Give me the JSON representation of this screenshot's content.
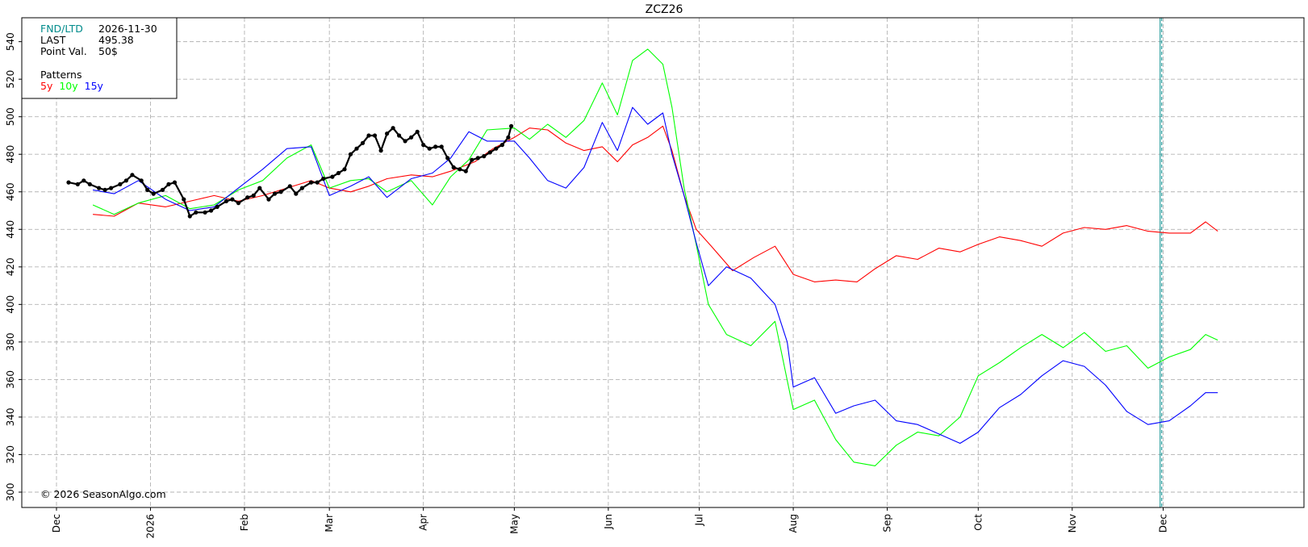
{
  "chart_data": {
    "type": "line",
    "title": "ZCZ26",
    "xlabel": "",
    "ylabel": "",
    "ylim": [
      300,
      545
    ],
    "y_ticks": [
      300,
      320,
      340,
      360,
      380,
      400,
      420,
      440,
      460,
      480,
      500,
      520,
      540
    ],
    "x_tick_labels": [
      "Dec",
      "2026",
      "Feb",
      "Mar",
      "Apr",
      "May",
      "Jun",
      "Jul",
      "Aug",
      "Sep",
      "Oct",
      "Nov",
      "Dec"
    ],
    "x_tick_dates": [
      "2025-12-01",
      "2026-01-01",
      "2026-02-01",
      "2026-03-01",
      "2026-04-01",
      "2026-05-01",
      "2026-06-01",
      "2026-07-01",
      "2026-08-01",
      "2026-09-01",
      "2026-10-01",
      "2026-11-01",
      "2026-12-01"
    ],
    "x_range": [
      "2025-12-01",
      "2027-01-01"
    ],
    "grid": true,
    "fnd_ltd_date": "2026-11-30",
    "series": [
      {
        "name": "5y",
        "color": "#ff0000",
        "points": [
          [
            "2025-12-13",
            448
          ],
          [
            "2025-12-20",
            447
          ],
          [
            "2025-12-28",
            454
          ],
          [
            "2026-01-06",
            452
          ],
          [
            "2026-01-14",
            455
          ],
          [
            "2026-01-22",
            458
          ],
          [
            "2026-01-30",
            455
          ],
          [
            "2026-02-07",
            458
          ],
          [
            "2026-02-15",
            462
          ],
          [
            "2026-02-23",
            466
          ],
          [
            "2026-03-01",
            462
          ],
          [
            "2026-03-08",
            460
          ],
          [
            "2026-03-14",
            463
          ],
          [
            "2026-03-20",
            467
          ],
          [
            "2026-03-28",
            469
          ],
          [
            "2026-04-04",
            468
          ],
          [
            "2026-04-10",
            471
          ],
          [
            "2026-04-18",
            476
          ],
          [
            "2026-04-24",
            483
          ],
          [
            "2026-05-01",
            489
          ],
          [
            "2026-05-06",
            494
          ],
          [
            "2026-05-12",
            493
          ],
          [
            "2026-05-18",
            486
          ],
          [
            "2026-05-24",
            482
          ],
          [
            "2026-05-30",
            484
          ],
          [
            "2026-06-04",
            476
          ],
          [
            "2026-06-09",
            485
          ],
          [
            "2026-06-14",
            489
          ],
          [
            "2026-06-19",
            495
          ],
          [
            "2026-06-22",
            482
          ],
          [
            "2026-06-26",
            458
          ],
          [
            "2026-06-30",
            440
          ],
          [
            "2026-07-05",
            431
          ],
          [
            "2026-07-12",
            418
          ],
          [
            "2026-07-19",
            425
          ],
          [
            "2026-07-26",
            431
          ],
          [
            "2026-08-01",
            416
          ],
          [
            "2026-08-08",
            412
          ],
          [
            "2026-08-15",
            413
          ],
          [
            "2026-08-22",
            412
          ],
          [
            "2026-08-28",
            419
          ],
          [
            "2026-09-04",
            426
          ],
          [
            "2026-09-11",
            424
          ],
          [
            "2026-09-18",
            430
          ],
          [
            "2026-09-25",
            428
          ],
          [
            "2026-10-01",
            432
          ],
          [
            "2026-10-08",
            436
          ],
          [
            "2026-10-15",
            434
          ],
          [
            "2026-10-22",
            431
          ],
          [
            "2026-10-29",
            438
          ],
          [
            "2026-11-05",
            441
          ],
          [
            "2026-11-12",
            440
          ],
          [
            "2026-11-19",
            442
          ],
          [
            "2026-11-26",
            439
          ],
          [
            "2026-12-03",
            438
          ],
          [
            "2026-12-10",
            438
          ],
          [
            "2026-12-15",
            444
          ],
          [
            "2026-12-19",
            439
          ]
        ]
      },
      {
        "name": "10y",
        "color": "#00ff00",
        "points": [
          [
            "2025-12-13",
            453
          ],
          [
            "2025-12-20",
            448
          ],
          [
            "2025-12-28",
            454
          ],
          [
            "2026-01-06",
            458
          ],
          [
            "2026-01-14",
            451
          ],
          [
            "2026-01-22",
            453
          ],
          [
            "2026-01-30",
            461
          ],
          [
            "2026-02-07",
            466
          ],
          [
            "2026-02-15",
            478
          ],
          [
            "2026-02-23",
            485
          ],
          [
            "2026-03-01",
            462
          ],
          [
            "2026-03-08",
            466
          ],
          [
            "2026-03-14",
            467
          ],
          [
            "2026-03-20",
            460
          ],
          [
            "2026-03-28",
            466
          ],
          [
            "2026-04-04",
            453
          ],
          [
            "2026-04-10",
            468
          ],
          [
            "2026-04-16",
            477
          ],
          [
            "2026-04-22",
            493
          ],
          [
            "2026-05-01",
            494
          ],
          [
            "2026-05-06",
            488
          ],
          [
            "2026-05-12",
            496
          ],
          [
            "2026-05-18",
            489
          ],
          [
            "2026-05-24",
            498
          ],
          [
            "2026-05-30",
            518
          ],
          [
            "2026-06-04",
            501
          ],
          [
            "2026-06-09",
            530
          ],
          [
            "2026-06-14",
            536
          ],
          [
            "2026-06-19",
            528
          ],
          [
            "2026-06-22",
            505
          ],
          [
            "2026-06-26",
            462
          ],
          [
            "2026-06-30",
            432
          ],
          [
            "2026-07-04",
            400
          ],
          [
            "2026-07-10",
            384
          ],
          [
            "2026-07-18",
            378
          ],
          [
            "2026-07-26",
            391
          ],
          [
            "2026-08-01",
            344
          ],
          [
            "2026-08-08",
            349
          ],
          [
            "2026-08-15",
            328
          ],
          [
            "2026-08-21",
            316
          ],
          [
            "2026-08-28",
            314
          ],
          [
            "2026-09-04",
            325
          ],
          [
            "2026-09-11",
            332
          ],
          [
            "2026-09-18",
            330
          ],
          [
            "2026-09-25",
            340
          ],
          [
            "2026-10-01",
            362
          ],
          [
            "2026-10-08",
            369
          ],
          [
            "2026-10-15",
            377
          ],
          [
            "2026-10-22",
            384
          ],
          [
            "2026-10-29",
            377
          ],
          [
            "2026-11-05",
            385
          ],
          [
            "2026-11-12",
            375
          ],
          [
            "2026-11-19",
            378
          ],
          [
            "2026-11-26",
            366
          ],
          [
            "2026-12-03",
            372
          ],
          [
            "2026-12-10",
            376
          ],
          [
            "2026-12-15",
            384
          ],
          [
            "2026-12-19",
            381
          ]
        ]
      },
      {
        "name": "15y",
        "color": "#0000ff",
        "points": [
          [
            "2025-12-13",
            461
          ],
          [
            "2025-12-20",
            459
          ],
          [
            "2025-12-28",
            466
          ],
          [
            "2026-01-06",
            456
          ],
          [
            "2026-01-14",
            450
          ],
          [
            "2026-01-22",
            452
          ],
          [
            "2026-01-30",
            462
          ],
          [
            "2026-02-07",
            472
          ],
          [
            "2026-02-15",
            483
          ],
          [
            "2026-02-23",
            484
          ],
          [
            "2026-03-01",
            458
          ],
          [
            "2026-03-08",
            463
          ],
          [
            "2026-03-14",
            468
          ],
          [
            "2026-03-20",
            457
          ],
          [
            "2026-03-28",
            467
          ],
          [
            "2026-04-04",
            470
          ],
          [
            "2026-04-10",
            478
          ],
          [
            "2026-04-16",
            492
          ],
          [
            "2026-04-22",
            487
          ],
          [
            "2026-05-01",
            487
          ],
          [
            "2026-05-06",
            478
          ],
          [
            "2026-05-12",
            466
          ],
          [
            "2026-05-18",
            462
          ],
          [
            "2026-05-24",
            473
          ],
          [
            "2026-05-30",
            497
          ],
          [
            "2026-06-04",
            482
          ],
          [
            "2026-06-09",
            505
          ],
          [
            "2026-06-14",
            496
          ],
          [
            "2026-06-19",
            502
          ],
          [
            "2026-06-22",
            480
          ],
          [
            "2026-06-26",
            458
          ],
          [
            "2026-06-30",
            433
          ],
          [
            "2026-07-04",
            410
          ],
          [
            "2026-07-10",
            420
          ],
          [
            "2026-07-18",
            414
          ],
          [
            "2026-07-26",
            400
          ],
          [
            "2026-07-30",
            380
          ],
          [
            "2026-08-01",
            356
          ],
          [
            "2026-08-08",
            361
          ],
          [
            "2026-08-15",
            342
          ],
          [
            "2026-08-21",
            346
          ],
          [
            "2026-08-28",
            349
          ],
          [
            "2026-09-04",
            338
          ],
          [
            "2026-09-11",
            336
          ],
          [
            "2026-09-18",
            331
          ],
          [
            "2026-09-25",
            326
          ],
          [
            "2026-10-01",
            332
          ],
          [
            "2026-10-08",
            345
          ],
          [
            "2026-10-15",
            352
          ],
          [
            "2026-10-22",
            362
          ],
          [
            "2026-10-29",
            370
          ],
          [
            "2026-11-05",
            367
          ],
          [
            "2026-11-12",
            357
          ],
          [
            "2026-11-19",
            343
          ],
          [
            "2026-11-26",
            336
          ],
          [
            "2026-12-03",
            338
          ],
          [
            "2026-12-10",
            346
          ],
          [
            "2026-12-15",
            353
          ],
          [
            "2026-12-19",
            353
          ]
        ]
      },
      {
        "name": "ZCZ26",
        "color": "#000000",
        "markers": true,
        "points": [
          [
            "2025-12-05",
            465
          ],
          [
            "2025-12-08",
            464
          ],
          [
            "2025-12-10",
            466
          ],
          [
            "2025-12-12",
            464
          ],
          [
            "2025-12-15",
            462
          ],
          [
            "2025-12-17",
            461
          ],
          [
            "2025-12-19",
            462
          ],
          [
            "2025-12-22",
            464
          ],
          [
            "2025-12-24",
            466
          ],
          [
            "2025-12-26",
            469
          ],
          [
            "2025-12-29",
            466
          ],
          [
            "2025-12-31",
            461
          ],
          [
            "2026-01-02",
            459
          ],
          [
            "2026-01-05",
            461
          ],
          [
            "2026-01-07",
            464
          ],
          [
            "2026-01-09",
            465
          ],
          [
            "2026-01-12",
            456
          ],
          [
            "2026-01-14",
            447
          ],
          [
            "2026-01-16",
            449
          ],
          [
            "2026-01-19",
            449
          ],
          [
            "2026-01-21",
            450
          ],
          [
            "2026-01-23",
            452
          ],
          [
            "2026-01-26",
            455
          ],
          [
            "2026-01-28",
            456
          ],
          [
            "2026-01-30",
            454
          ],
          [
            "2026-02-02",
            457
          ],
          [
            "2026-02-04",
            458
          ],
          [
            "2026-02-06",
            462
          ],
          [
            "2026-02-09",
            456
          ],
          [
            "2026-02-11",
            459
          ],
          [
            "2026-02-13",
            460
          ],
          [
            "2026-02-16",
            463
          ],
          [
            "2026-02-18",
            459
          ],
          [
            "2026-02-20",
            462
          ],
          [
            "2026-02-23",
            465
          ],
          [
            "2026-02-25",
            465
          ],
          [
            "2026-02-27",
            467
          ],
          [
            "2026-03-02",
            468
          ],
          [
            "2026-03-04",
            470
          ],
          [
            "2026-03-06",
            472
          ],
          [
            "2026-03-08",
            480
          ],
          [
            "2026-03-10",
            483
          ],
          [
            "2026-03-12",
            486
          ],
          [
            "2026-03-14",
            490
          ],
          [
            "2026-03-16",
            490
          ],
          [
            "2026-03-18",
            482
          ],
          [
            "2026-03-20",
            491
          ],
          [
            "2026-03-22",
            494
          ],
          [
            "2026-03-24",
            490
          ],
          [
            "2026-03-26",
            487
          ],
          [
            "2026-03-28",
            489
          ],
          [
            "2026-03-30",
            492
          ],
          [
            "2026-04-01",
            485
          ],
          [
            "2026-04-03",
            483
          ],
          [
            "2026-04-05",
            484
          ],
          [
            "2026-04-07",
            484
          ],
          [
            "2026-04-09",
            478
          ],
          [
            "2026-04-11",
            473
          ],
          [
            "2026-04-13",
            472
          ],
          [
            "2026-04-15",
            471
          ],
          [
            "2026-04-17",
            477
          ],
          [
            "2026-04-19",
            478
          ],
          [
            "2026-04-21",
            479
          ],
          [
            "2026-04-23",
            481
          ],
          [
            "2026-04-25",
            483
          ],
          [
            "2026-04-27",
            485
          ],
          [
            "2026-04-29",
            489
          ],
          [
            "2026-04-30",
            495
          ]
        ]
      }
    ]
  },
  "info_box": {
    "fnd_label": "FND/LTD",
    "fnd_value": "2026-11-30",
    "last_label": "LAST",
    "last_value": "495.38",
    "pv_label": "Point Val.",
    "pv_value": "50$",
    "patterns_label": "Patterns",
    "legend_5y": "5y",
    "legend_10y": "10y",
    "legend_15y": "15y"
  },
  "copyright": "© 2026 SeasonAlgo.com",
  "colors": {
    "fnd_label": "#008b8b",
    "fnd_line": "#008b8b",
    "grid": "#b3b3b3"
  }
}
